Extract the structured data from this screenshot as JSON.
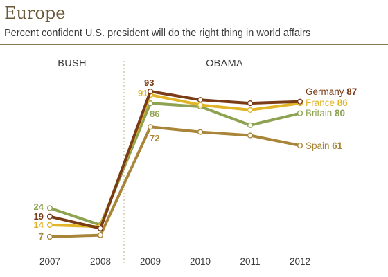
{
  "title": "Europe",
  "subtitle": "Percent confident U.S. president will do the right thing in world affairs",
  "eras": [
    "BUSH",
    "OBAMA"
  ],
  "chart_data": {
    "type": "line",
    "title": "Europe",
    "subtitle": "Percent confident U.S. president will do the right thing in world affairs",
    "x": [
      "2007",
      "2008",
      "2009",
      "2010",
      "2011",
      "2012"
    ],
    "ylim": [
      0,
      100
    ],
    "grid": false,
    "legend": "right-end labels",
    "eras": [
      {
        "name": "BUSH",
        "years": [
          "2007",
          "2008"
        ]
      },
      {
        "name": "OBAMA",
        "years": [
          "2009",
          "2010",
          "2011",
          "2012"
        ]
      }
    ],
    "series": [
      {
        "name": "Germany",
        "color": "#7a3b17",
        "values": [
          19,
          12,
          93,
          88,
          86,
          87
        ],
        "labels": {
          "0": "19",
          "2": "93"
        },
        "end_label": "87"
      },
      {
        "name": "France",
        "color": "#e2b427",
        "values": [
          14,
          13,
          91,
          85,
          82,
          86
        ],
        "labels": {
          "0": "14",
          "2": "91"
        },
        "end_label": "86"
      },
      {
        "name": "Britain",
        "color": "#8ea352",
        "values": [
          24,
          14,
          86,
          84,
          73,
          80
        ],
        "labels": {
          "0": "24",
          "2": "86"
        },
        "end_label": "80"
      },
      {
        "name": "Spain",
        "color": "#a88538",
        "values": [
          7,
          8,
          72,
          69,
          67,
          61
        ],
        "labels": {
          "0": "7",
          "2": "72"
        },
        "end_label": "61"
      }
    ]
  }
}
